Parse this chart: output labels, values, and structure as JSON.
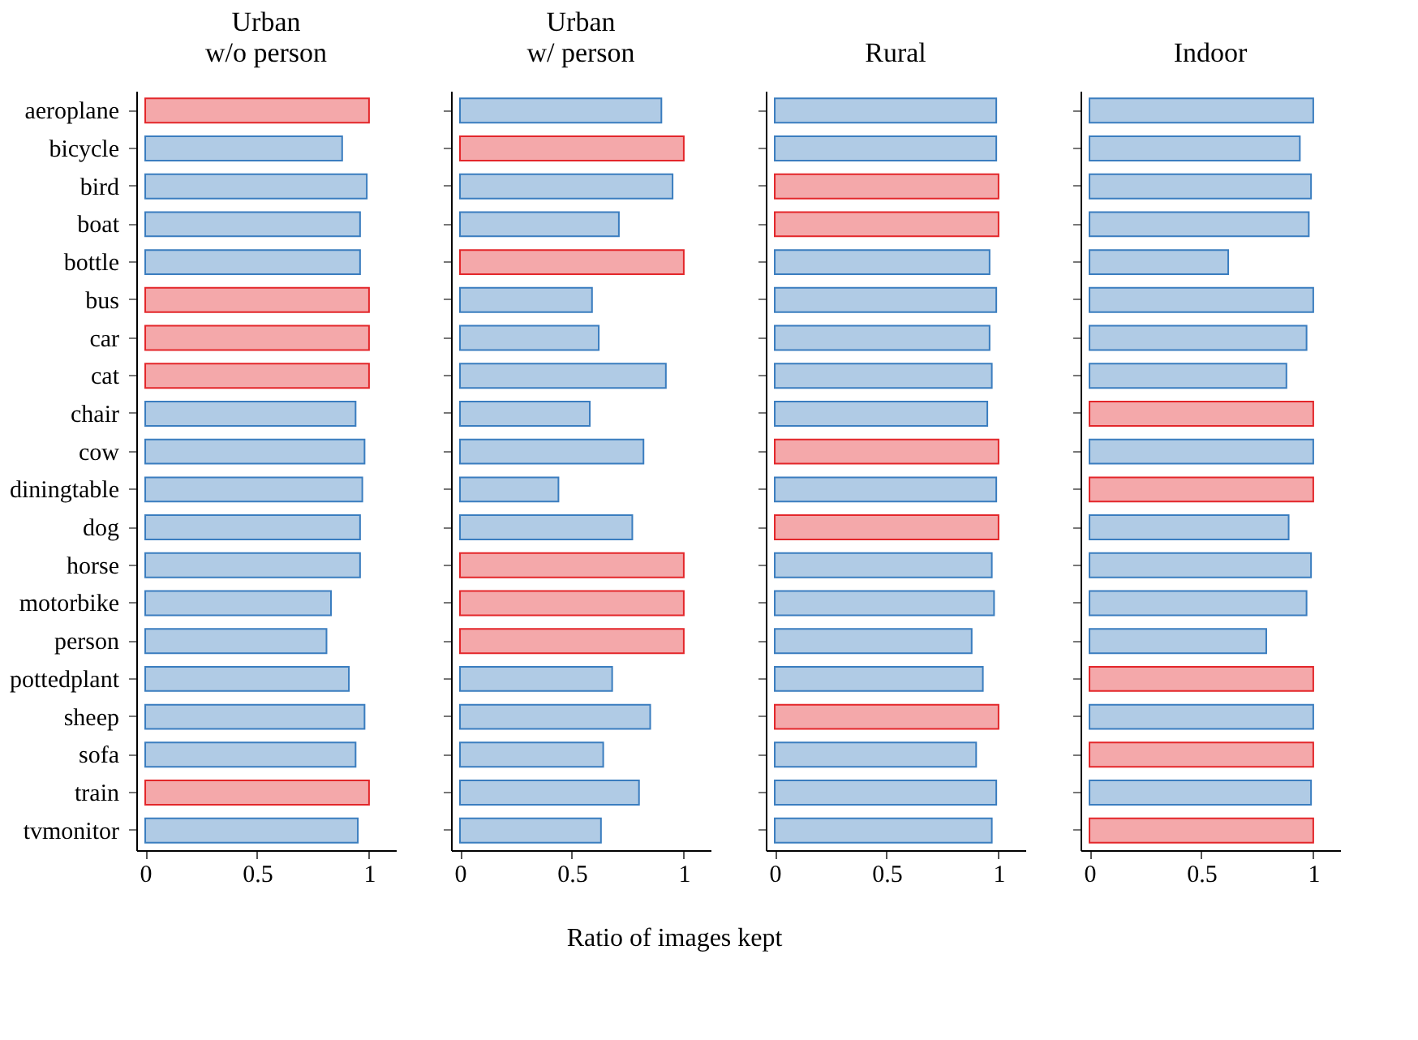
{
  "chart_data": [
    {
      "type": "bar",
      "orientation": "horizontal",
      "title": "Urban\nw/o person",
      "categories": [
        "aeroplane",
        "bicycle",
        "bird",
        "boat",
        "bottle",
        "bus",
        "car",
        "cat",
        "chair",
        "cow",
        "diningtable",
        "dog",
        "horse",
        "motorbike",
        "person",
        "pottedplant",
        "sheep",
        "sofa",
        "train",
        "tvmonitor"
      ],
      "values": [
        1.0,
        0.88,
        0.99,
        0.96,
        0.96,
        1.0,
        1.0,
        1.0,
        0.94,
        0.98,
        0.97,
        0.96,
        0.96,
        0.83,
        0.81,
        0.91,
        0.98,
        0.94,
        1.0,
        0.95
      ],
      "colors": [
        "#e3262a",
        "#3a7dbf",
        "#3a7dbf",
        "#3a7dbf",
        "#3a7dbf",
        "#e3262a",
        "#e3262a",
        "#e3262a",
        "#3a7dbf",
        "#3a7dbf",
        "#3a7dbf",
        "#3a7dbf",
        "#3a7dbf",
        "#3a7dbf",
        "#3a7dbf",
        "#3a7dbf",
        "#3a7dbf",
        "#3a7dbf",
        "#e3262a",
        "#3a7dbf"
      ],
      "xlim": [
        -0.04,
        1.12
      ],
      "xticks": [
        0,
        0.5,
        1
      ],
      "grid": false
    },
    {
      "type": "bar",
      "orientation": "horizontal",
      "title": "Urban\nw/ person",
      "annotations": [
        "Ratio of images kept"
      ],
      "categories": [
        null,
        null,
        null,
        null,
        null,
        null,
        null,
        null,
        null,
        null,
        null,
        null,
        null,
        null,
        null,
        null,
        null,
        null,
        null,
        null
      ],
      "values": [
        0.9,
        1.0,
        0.95,
        0.71,
        1.0,
        0.59,
        0.62,
        0.92,
        0.58,
        0.82,
        0.44,
        0.77,
        1.0,
        1.0,
        1.0,
        0.68,
        0.85,
        0.64,
        0.8,
        0.63
      ],
      "colors": [
        "#3a7dbf",
        "#e3262a",
        "#3a7dbf",
        "#3a7dbf",
        "#e3262a",
        "#3a7dbf",
        "#3a7dbf",
        "#3a7dbf",
        "#3a7dbf",
        "#3a7dbf",
        "#3a7dbf",
        "#3a7dbf",
        "#e3262a",
        "#e3262a",
        "#e3262a",
        "#3a7dbf",
        "#3a7dbf",
        "#3a7dbf",
        "#3a7dbf",
        "#3a7dbf"
      ],
      "xlim": [
        -0.04,
        1.12
      ],
      "xticks": [
        0,
        0.5,
        1
      ],
      "grid": false,
      "tick_labels": "x"
    },
    {
      "type": "bar",
      "orientation": "horizontal",
      "title": "Rural",
      "categories": [
        null,
        null,
        null,
        null,
        null,
        null,
        null,
        null,
        null,
        null,
        null,
        null,
        null,
        null,
        null,
        null,
        null,
        null,
        null,
        null
      ],
      "values": [
        0.99,
        0.99,
        1.0,
        1.0,
        0.96,
        0.99,
        0.96,
        0.97,
        0.95,
        1.0,
        0.99,
        1.0,
        0.97,
        0.98,
        0.88,
        0.93,
        1.0,
        0.9,
        0.99,
        0.97
      ],
      "colors": [
        "#3a7dbf",
        "#3a7dbf",
        "#e3262a",
        "#e3262a",
        "#3a7dbf",
        "#3a7dbf",
        "#3a7dbf",
        "#3a7dbf",
        "#3a7dbf",
        "#e3262a",
        "#3a7dbf",
        "#e3262a",
        "#3a7dbf",
        "#3a7dbf",
        "#3a7dbf",
        "#3a7dbf",
        "#e3262a",
        "#3a7dbf",
        "#3a7dbf",
        "#3a7dbf"
      ],
      "xlim": [
        -0.04,
        1.12
      ],
      "xticks": [
        0,
        0.5,
        1
      ],
      "grid": false,
      "tick_labels": "x"
    },
    {
      "type": "bar",
      "orientation": "horizontal",
      "title": "Indoor",
      "categories": [
        null,
        null,
        null,
        null,
        null,
        null,
        null,
        null,
        null,
        null,
        null,
        null,
        null,
        null,
        null,
        null,
        null,
        null,
        null,
        null
      ],
      "values": [
        1.0,
        0.94,
        0.99,
        0.98,
        0.62,
        1.0,
        0.97,
        0.88,
        1.0,
        1.0,
        1.0,
        0.89,
        0.99,
        0.97,
        0.79,
        1.0,
        1.0,
        1.0,
        0.99,
        1.0
      ],
      "colors": [
        "#3a7dbf",
        "#3a7dbf",
        "#3a7dbf",
        "#3a7dbf",
        "#3a7dbf",
        "#3a7dbf",
        "#3a7dbf",
        "#3a7dbf",
        "#e3262a",
        "#3a7dbf",
        "#e3262a",
        "#3a7dbf",
        "#3a7dbf",
        "#3a7dbf",
        "#3a7dbf",
        "#e3262a",
        "#3a7dbf",
        "#e3262a",
        "#3a7dbf",
        "#e3262a"
      ],
      "xlim": [
        -0.04,
        1.12
      ],
      "xticks": [
        0,
        0.5,
        1
      ],
      "grid": false,
      "tick_labels": "x"
    }
  ]
}
